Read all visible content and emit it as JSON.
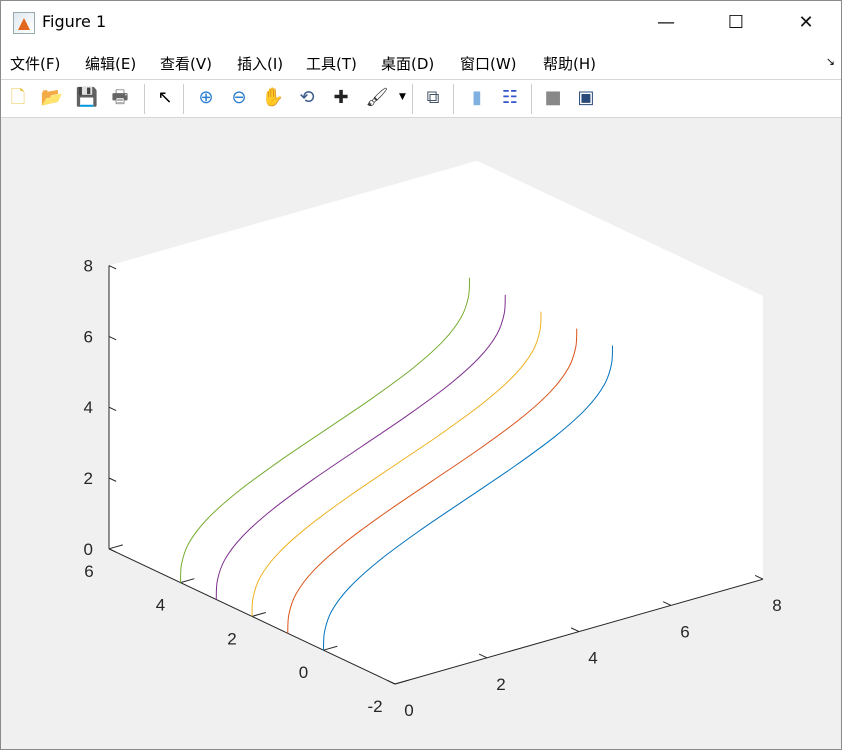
{
  "window": {
    "title": "Figure 1",
    "minimize": "—",
    "maximize": "☐",
    "close": "✕"
  },
  "menu": [
    "文件(F)",
    "编辑(E)",
    "查看(V)",
    "插入(I)",
    "工具(T)",
    "桌面(D)",
    "窗口(W)",
    "帮助(H)"
  ],
  "menu_corner_icon": "dock-arrow-icon",
  "toolbar": [
    {
      "name": "new-figure",
      "glyph": "🗋",
      "color": "#e8c54a"
    },
    {
      "name": "open-file",
      "glyph": "📂",
      "color": "#d9a520"
    },
    {
      "name": "save",
      "glyph": "💾",
      "color": "#3b3b9a"
    },
    {
      "name": "print",
      "glyph": "🖶",
      "color": "#666"
    },
    {
      "name": "edit-plot-pointer",
      "glyph": "↖",
      "color": "#000"
    },
    {
      "name": "zoom-in",
      "glyph": "⊕",
      "color": "#2a7fd0"
    },
    {
      "name": "zoom-out",
      "glyph": "⊖",
      "color": "#2a7fd0"
    },
    {
      "name": "pan-hand",
      "glyph": "✋",
      "color": "#d9b38c"
    },
    {
      "name": "rotate-3d",
      "glyph": "⟲",
      "color": "#3a5a8a"
    },
    {
      "name": "data-cursor",
      "glyph": "✚",
      "color": "#222"
    },
    {
      "name": "brush",
      "glyph": "🖌",
      "color": "#333"
    },
    {
      "name": "link-plot",
      "glyph": "⧉",
      "color": "#456"
    },
    {
      "name": "colorbar",
      "glyph": "▮",
      "color": "#7fb0e0"
    },
    {
      "name": "legend",
      "glyph": "☷",
      "color": "#3355cc"
    },
    {
      "name": "hide-plot-tools",
      "glyph": "■",
      "color": "#888"
    },
    {
      "name": "show-plot-tools",
      "glyph": "▣",
      "color": "#2a4a7a"
    }
  ],
  "chart_data": {
    "type": "line3d",
    "xlim": [
      0,
      8
    ],
    "ylim": [
      -2,
      6
    ],
    "zlim": [
      0,
      8
    ],
    "xticks": [
      "0",
      "2",
      "4",
      "6",
      "8"
    ],
    "yticks": [
      "-2",
      "0",
      "2",
      "4",
      "6"
    ],
    "zticks": [
      "0",
      "2",
      "4",
      "6",
      "8"
    ],
    "grid": false,
    "x": [
      0,
      0.024,
      0.181,
      0.571,
      1.228,
      2.118,
      3.142,
      4.165,
      5.055,
      5.712,
      6.102,
      6.26,
      6.283
    ],
    "z": [
      0,
      0.524,
      1.047,
      1.571,
      2.094,
      2.618,
      3.142,
      3.665,
      4.189,
      4.712,
      5.236,
      5.76,
      6.283
    ],
    "series": [
      {
        "y": 0,
        "color": "#0072BD"
      },
      {
        "y": 1,
        "color": "#D95319"
      },
      {
        "y": 2,
        "color": "#EDB120"
      },
      {
        "y": 3,
        "color": "#7E2F8E"
      },
      {
        "y": 4,
        "color": "#77AC30"
      }
    ]
  }
}
